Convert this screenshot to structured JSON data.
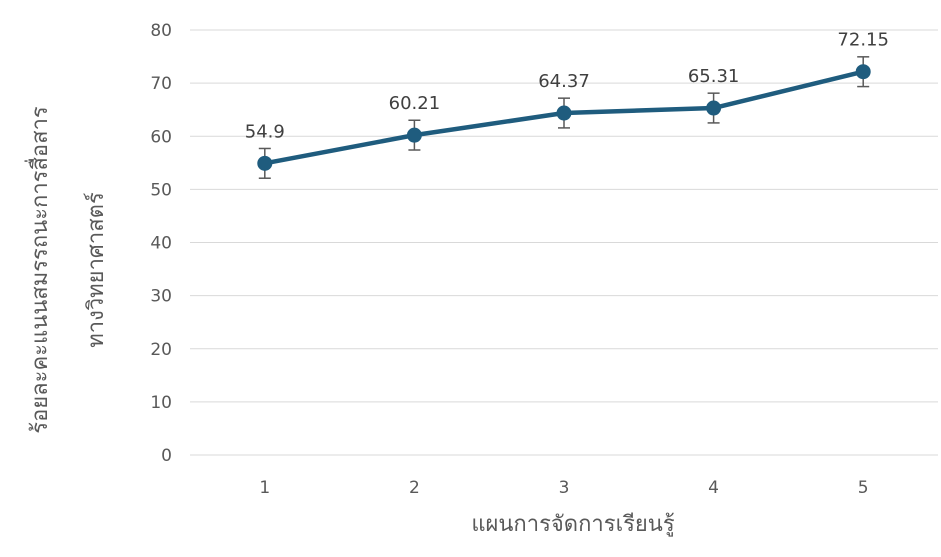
{
  "chart_data": {
    "type": "line",
    "title": "",
    "xlabel": "แผนการจัดการเรียนรู้",
    "ylabel_lines": [
      "ร้อยละคะแนนสมรรถนะการสื่อสาร",
      "ทางวิทยาศาสตร์"
    ],
    "categories": [
      "1",
      "2",
      "3",
      "4",
      "5"
    ],
    "series": [
      {
        "values": [
          54.9,
          60.21,
          64.37,
          65.31,
          72.15
        ],
        "error": [
          2.8,
          2.8,
          2.8,
          2.8,
          2.8
        ],
        "color": "#1F5C7E"
      }
    ],
    "data_labels": [
      "54.9",
      "60.21",
      "64.37",
      "65.31",
      "72.15"
    ],
    "ylim": [
      0,
      80
    ],
    "yticks": [
      "0",
      "10",
      "20",
      "30",
      "40",
      "50",
      "60",
      "70",
      "80"
    ],
    "grid": true,
    "gridColor": "#D9D9D9",
    "errorBarColor": "#595959"
  }
}
